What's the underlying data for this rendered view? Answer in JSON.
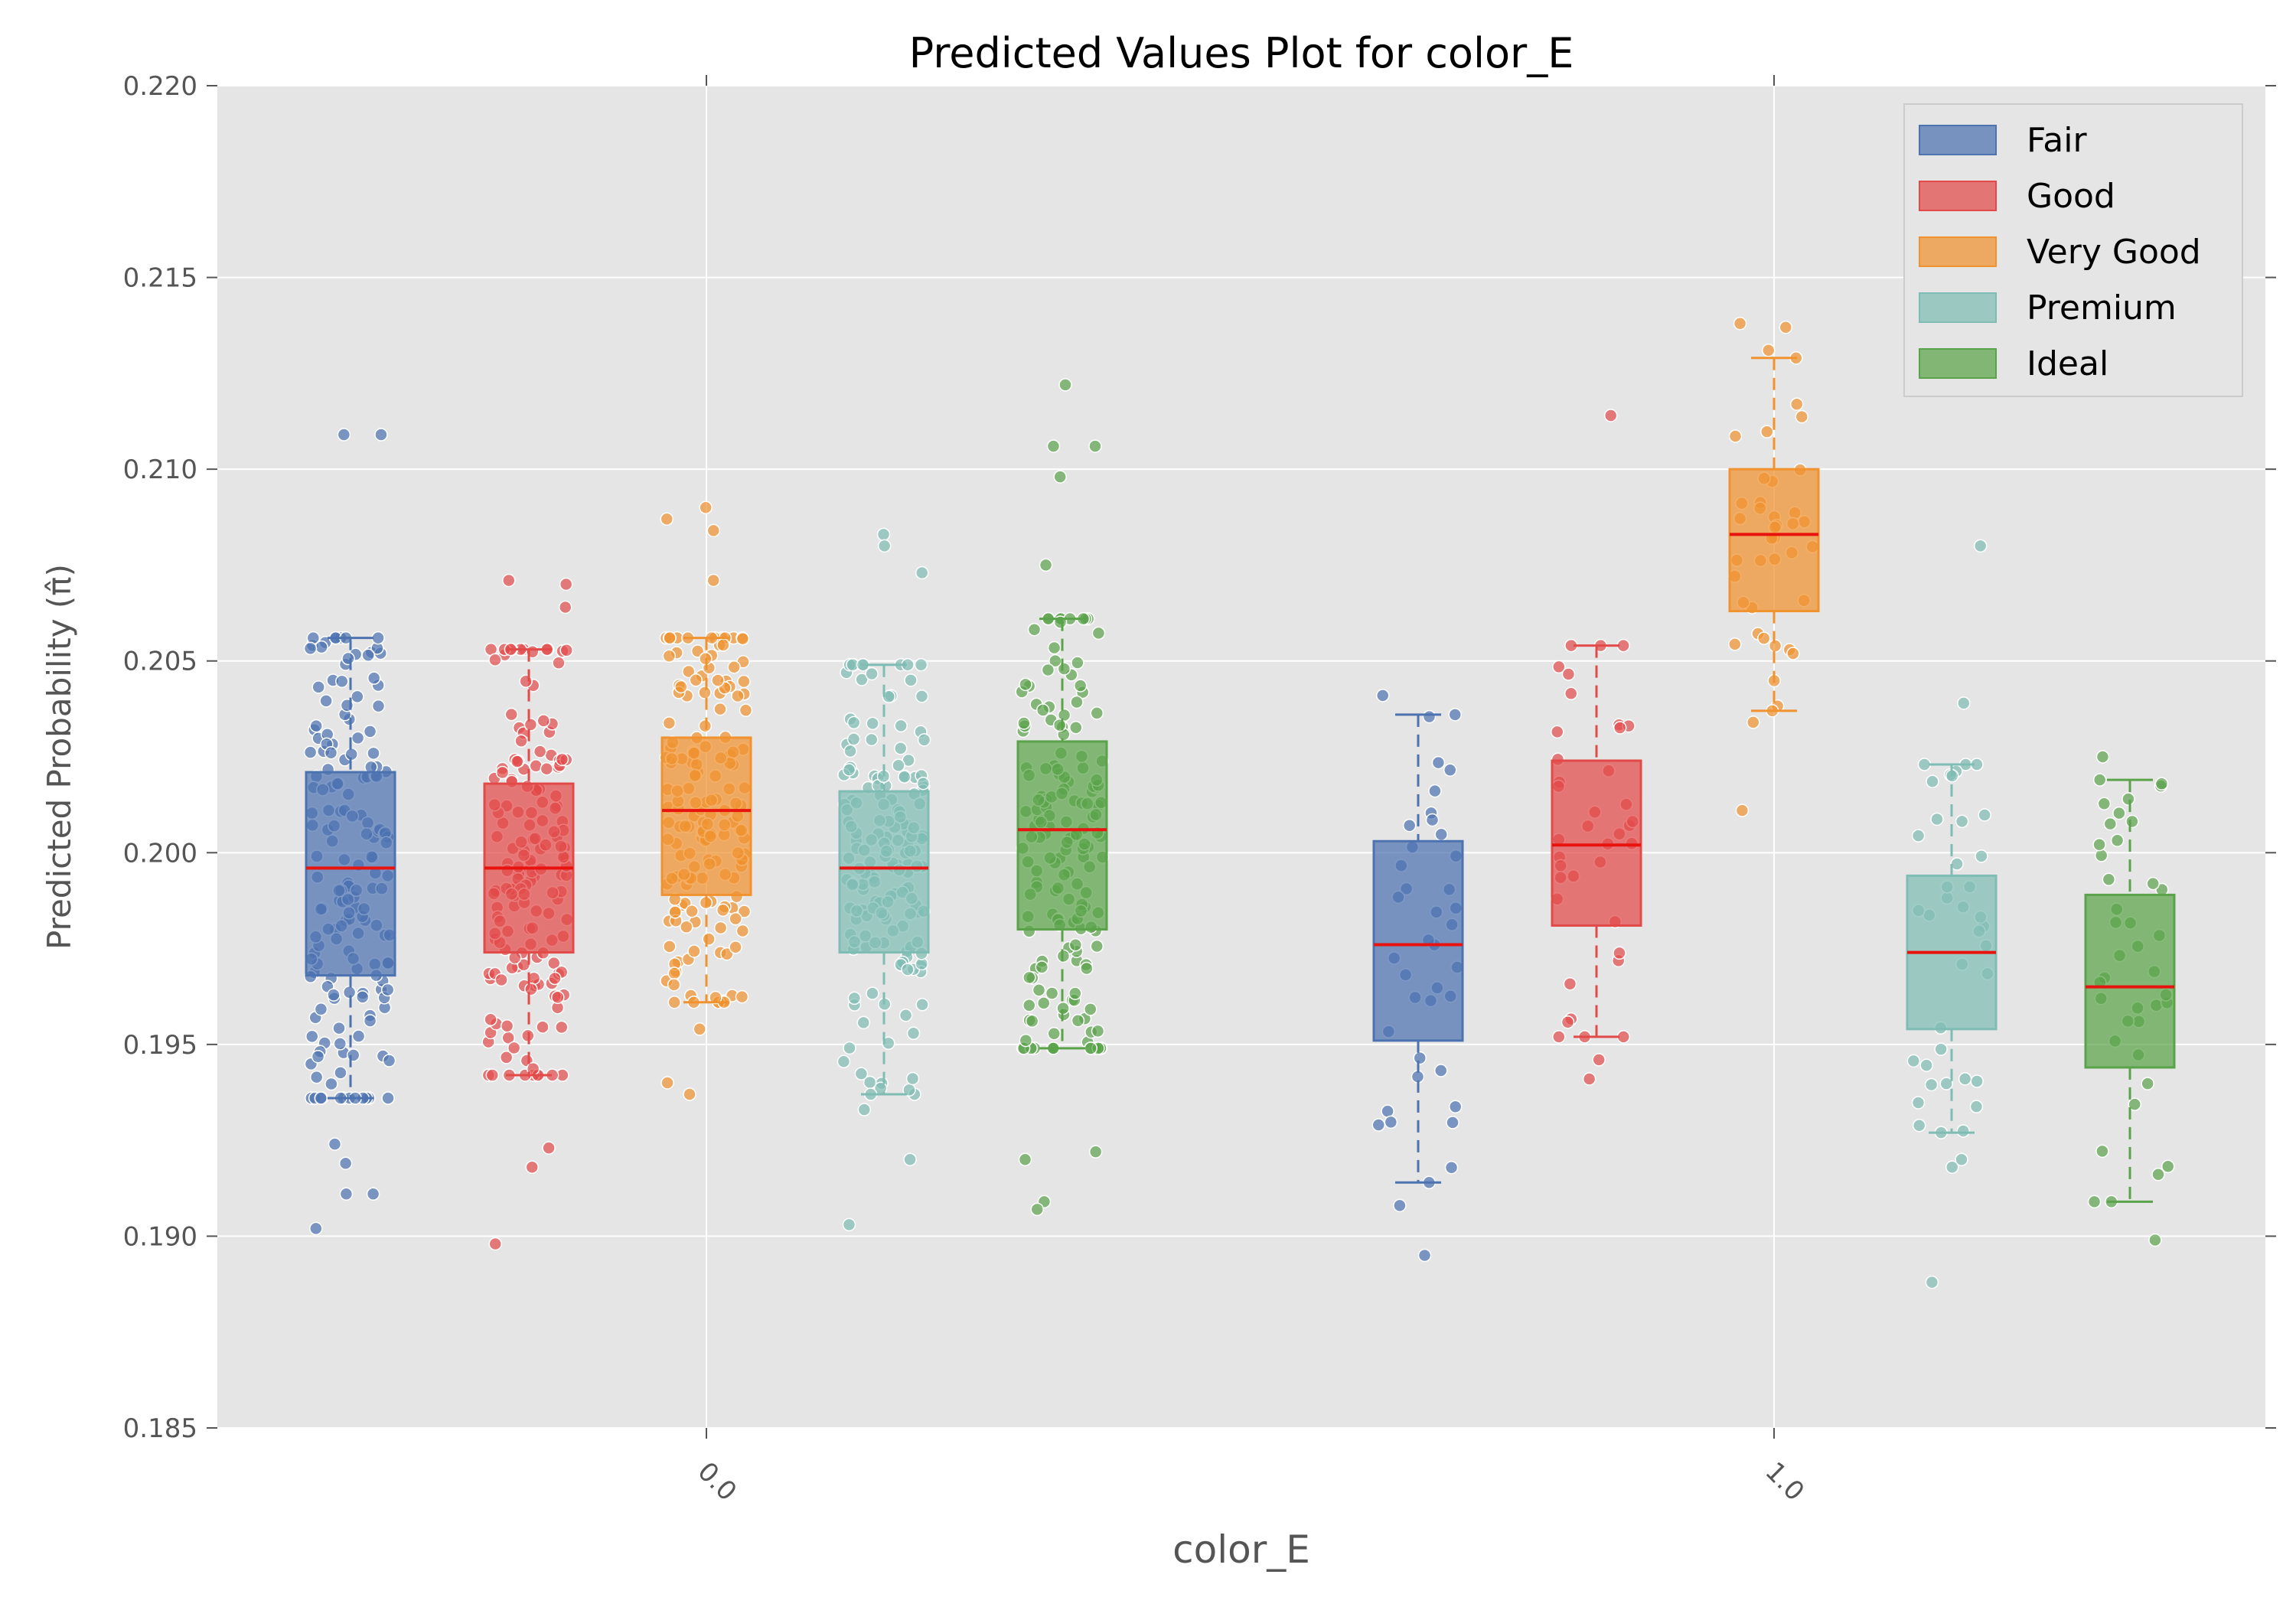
{
  "chart_data": {
    "type": "boxplot",
    "title": "Predicted Values Plot for color_E",
    "xlabel": "color_E",
    "ylabel": "Predicted Probability (π̂)",
    "ylim": [
      0.185,
      0.22
    ],
    "yticks": [
      "0.185",
      "0.190",
      "0.195",
      "0.200",
      "0.205",
      "0.210",
      "0.215",
      "0.220"
    ],
    "categories": [
      "0.0",
      "1.0"
    ],
    "grid": true,
    "legend_position": "top-right",
    "series": [
      {
        "name": "Fair",
        "color": "#4c72b0",
        "groups": [
          {
            "category": "0.0",
            "whisker_low": 0.1936,
            "q1": 0.1968,
            "median": 0.1996,
            "q3": 0.2021,
            "whisker_high": 0.2056,
            "outliers": [
              0.2109,
              0.2109,
              0.1902,
              0.1911,
              0.1911,
              0.1919,
              0.1924
            ]
          },
          {
            "category": "1.0",
            "whisker_low": 0.1914,
            "q1": 0.1951,
            "median": 0.1976,
            "q3": 0.2003,
            "whisker_high": 0.2036,
            "outliers": [
              0.2041,
              0.1908,
              0.1895
            ]
          }
        ]
      },
      {
        "name": "Good",
        "color": "#e24a4a",
        "groups": [
          {
            "category": "0.0",
            "whisker_low": 0.1942,
            "q1": 0.1974,
            "median": 0.1996,
            "q3": 0.2018,
            "whisker_high": 0.2053,
            "outliers": [
              0.2071,
              0.207,
              0.2064,
              0.1923,
              0.1918,
              0.1898
            ]
          },
          {
            "category": "1.0",
            "whisker_low": 0.1952,
            "q1": 0.1981,
            "median": 0.2002,
            "q3": 0.2024,
            "whisker_high": 0.2054,
            "outliers": [
              0.2114,
              0.1946,
              0.1941
            ]
          }
        ]
      },
      {
        "name": "Very Good",
        "color": "#f0922e",
        "groups": [
          {
            "category": "0.0",
            "whisker_low": 0.1961,
            "q1": 0.1989,
            "median": 0.2011,
            "q3": 0.203,
            "whisker_high": 0.2056,
            "outliers": [
              0.209,
              0.2087,
              0.2084,
              0.2071,
              0.1954,
              0.194,
              0.1937
            ]
          },
          {
            "category": "1.0",
            "whisker_low": 0.2037,
            "q1": 0.2063,
            "median": 0.2083,
            "q3": 0.21,
            "whisker_high": 0.2129,
            "outliers": [
              0.2138,
              0.2137,
              0.2131,
              0.2034,
              0.2011
            ]
          }
        ]
      },
      {
        "name": "Premium",
        "color": "#7fbcb4",
        "groups": [
          {
            "category": "0.0",
            "whisker_low": 0.1937,
            "q1": 0.1974,
            "median": 0.1996,
            "q3": 0.2016,
            "whisker_high": 0.2049,
            "outliers": [
              0.2083,
              0.208,
              0.2073,
              0.1933,
              0.192,
              0.1903
            ]
          },
          {
            "category": "1.0",
            "whisker_low": 0.1927,
            "q1": 0.1954,
            "median": 0.1974,
            "q3": 0.1994,
            "whisker_high": 0.2023,
            "outliers": [
              0.208,
              0.2039,
              0.192,
              0.1918,
              0.1888
            ]
          }
        ]
      },
      {
        "name": "Ideal",
        "color": "#5aa34a",
        "groups": [
          {
            "category": "0.0",
            "whisker_low": 0.1949,
            "q1": 0.198,
            "median": 0.2006,
            "q3": 0.2029,
            "whisker_high": 0.2061,
            "outliers": [
              0.2122,
              0.2106,
              0.2106,
              0.2098,
              0.2075,
              0.1922,
              0.192,
              0.1909,
              0.1907
            ]
          },
          {
            "category": "1.0",
            "whisker_low": 0.1909,
            "q1": 0.1944,
            "median": 0.1965,
            "q3": 0.1989,
            "whisker_high": 0.2019,
            "outliers": [
              0.2025,
              0.2014,
              0.1899
            ]
          }
        ]
      }
    ]
  }
}
